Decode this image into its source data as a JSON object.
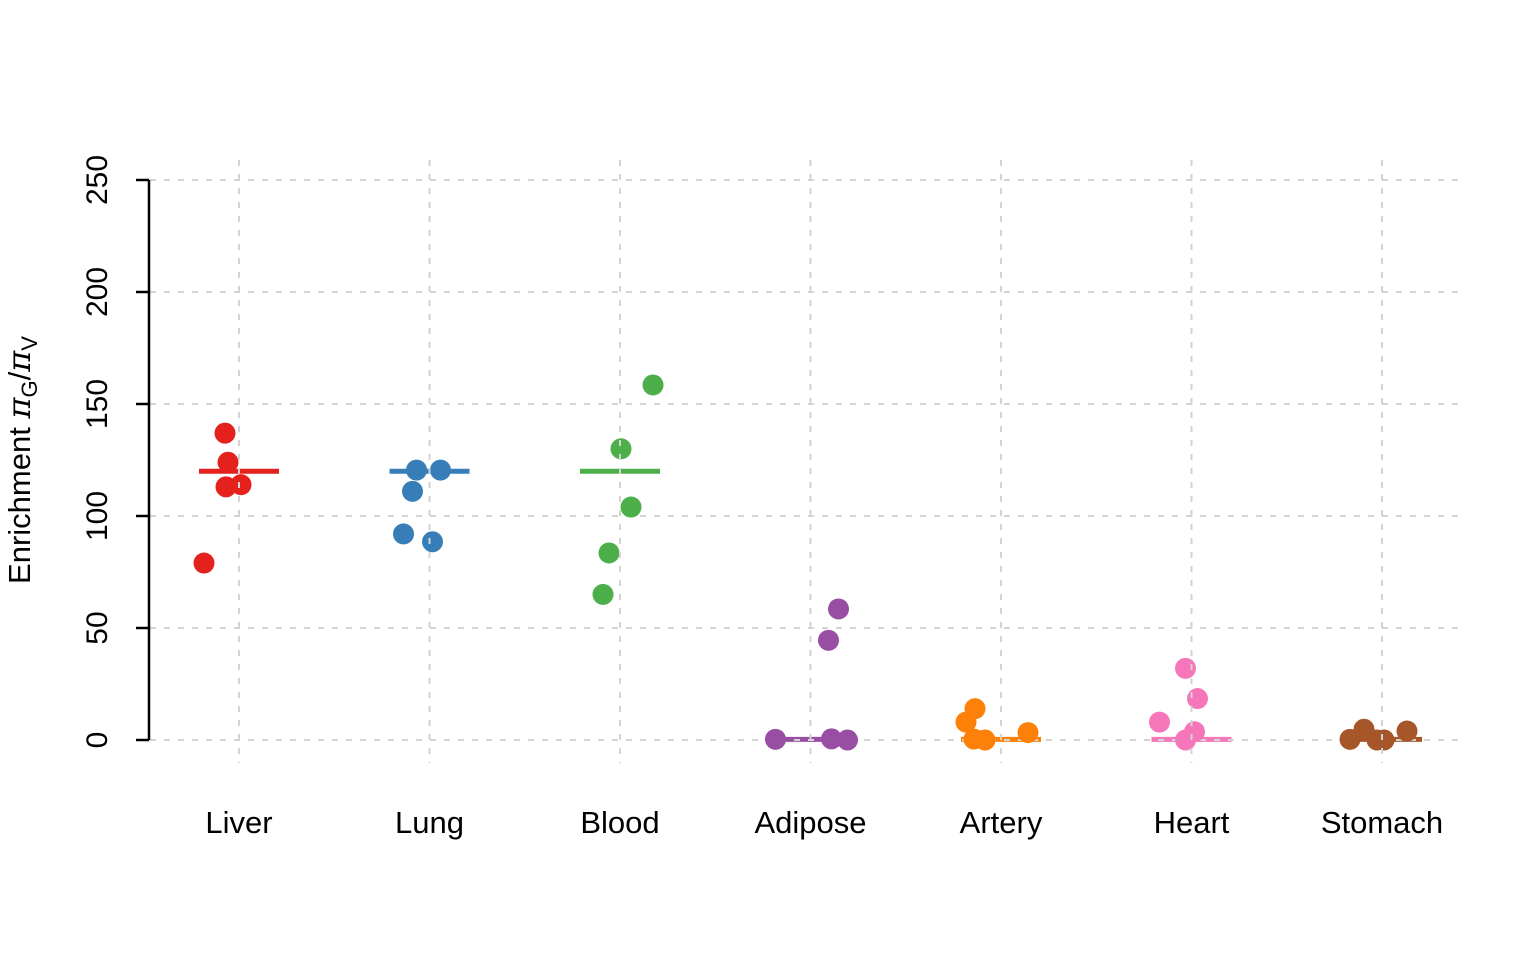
{
  "chart_data": {
    "type": "scatter",
    "subtype": "strip-plot-with-group-mean-lines",
    "title": "",
    "xlabel": "",
    "ylabel": "Enrichment πG/πV",
    "ylabel_parts": {
      "prefix": "Enrichment ",
      "pi1": "π",
      "sub1": "G",
      "slash": "/",
      "pi2": "π",
      "sub2": "V"
    },
    "ylim": [
      0,
      250
    ],
    "yticks": [
      0,
      50,
      100,
      150,
      200,
      250
    ],
    "grid": true,
    "grid_style": "dashed",
    "grid_color": "#d3d3d3",
    "axis_color": "#000000",
    "legend": false,
    "categories": [
      "Liver",
      "Lung",
      "Blood",
      "Adipose",
      "Artery",
      "Heart",
      "Stomach"
    ],
    "groups": [
      {
        "label": "Liver",
        "color": "#e4211c",
        "center_line": 120,
        "points": [
          {
            "dx": -14,
            "v": 137
          },
          {
            "dx": -11,
            "v": 124
          },
          {
            "dx": -13,
            "v": 113
          },
          {
            "dx": 2,
            "v": 114
          },
          {
            "dx": -35,
            "v": 79
          }
        ]
      },
      {
        "label": "Lung",
        "color": "#377eb8",
        "center_line": 120,
        "points": [
          {
            "dx": -13,
            "v": 120.5
          },
          {
            "dx": 11,
            "v": 120.5
          },
          {
            "dx": -17,
            "v": 111
          },
          {
            "dx": -26,
            "v": 92
          },
          {
            "dx": 3,
            "v": 88.5
          }
        ]
      },
      {
        "label": "Blood",
        "color": "#4daf4a",
        "center_line": 120,
        "points": [
          {
            "dx": 33,
            "v": 158.5
          },
          {
            "dx": 1,
            "v": 130
          },
          {
            "dx": 11,
            "v": 104
          },
          {
            "dx": -11,
            "v": 83.5
          },
          {
            "dx": -17,
            "v": 65
          }
        ]
      },
      {
        "label": "Adipose",
        "color": "#984ea3",
        "center_line": 0.3,
        "points": [
          {
            "dx": 28,
            "v": 58.5
          },
          {
            "dx": 18,
            "v": 44.5
          },
          {
            "dx": -35,
            "v": 0.3
          },
          {
            "dx": 21,
            "v": 0.5
          },
          {
            "dx": 37,
            "v": 0
          }
        ]
      },
      {
        "label": "Artery",
        "color": "#fd8109",
        "center_line": 0.3,
        "points": [
          {
            "dx": -26,
            "v": 14
          },
          {
            "dx": -35,
            "v": 8
          },
          {
            "dx": -27,
            "v": 0.4
          },
          {
            "dx": -16,
            "v": 0
          },
          {
            "dx": 27,
            "v": 3.3
          }
        ]
      },
      {
        "label": "Heart",
        "color": "#f577b9",
        "center_line": 0.3,
        "points": [
          {
            "dx": -6,
            "v": 32
          },
          {
            "dx": 6,
            "v": 18.5
          },
          {
            "dx": -32,
            "v": 8
          },
          {
            "dx": 3,
            "v": 3.7
          },
          {
            "dx": -6,
            "v": 0
          }
        ]
      },
      {
        "label": "Stomach",
        "color": "#a65628",
        "center_line": 0.3,
        "points": [
          {
            "dx": -18,
            "v": 4.8
          },
          {
            "dx": 25,
            "v": 4
          },
          {
            "dx": -32,
            "v": 0.3
          },
          {
            "dx": -5,
            "v": 0
          },
          {
            "dx": 2,
            "v": 0
          }
        ]
      }
    ]
  }
}
